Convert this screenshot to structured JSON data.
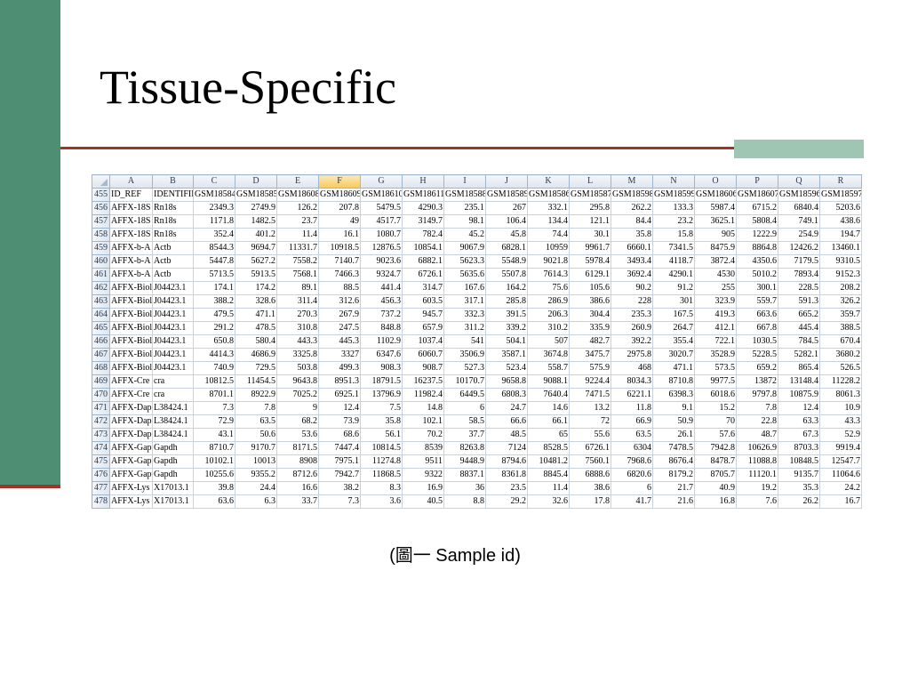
{
  "title": "Tissue-Specific",
  "caption": "(圖一 Sample id)",
  "colors": {
    "left_bar": "#4e8f73",
    "rule": "#a33227",
    "rule_accent": "#9fc6b3",
    "selected_column": "#f7c95e"
  },
  "sheet": {
    "selected_column": "F",
    "column_headers": [
      "A",
      "B",
      "C",
      "D",
      "E",
      "F",
      "G",
      "H",
      "I",
      "J",
      "K",
      "L",
      "M",
      "N",
      "O",
      "P",
      "Q",
      "R"
    ],
    "rows": [
      {
        "n": "455",
        "cells": [
          "ID_REF",
          "IDENTIFIE",
          "GSM18584",
          "GSM18585",
          "GSM18608",
          "GSM18609",
          "GSM18610",
          "GSM18611",
          "GSM18588",
          "GSM18589",
          "GSM18586",
          "GSM18587",
          "GSM18598",
          "GSM18599",
          "GSM18606",
          "GSM18607",
          "GSM18596",
          "GSM18597"
        ]
      },
      {
        "n": "456",
        "cells": [
          "AFFX-18S",
          "Rn18s",
          "2349.3",
          "2749.9",
          "126.2",
          "207.8",
          "5479.5",
          "4290.3",
          "235.1",
          "267",
          "332.1",
          "295.8",
          "262.2",
          "133.3",
          "5987.4",
          "6715.2",
          "6840.4",
          "5203.6"
        ]
      },
      {
        "n": "457",
        "cells": [
          "AFFX-18S",
          "Rn18s",
          "1171.8",
          "1482.5",
          "23.7",
          "49",
          "4517.7",
          "3149.7",
          "98.1",
          "106.4",
          "134.4",
          "121.1",
          "84.4",
          "23.2",
          "3625.1",
          "5808.4",
          "749.1",
          "438.6"
        ]
      },
      {
        "n": "458",
        "cells": [
          "AFFX-18S",
          "Rn18s",
          "352.4",
          "401.2",
          "11.4",
          "16.1",
          "1080.7",
          "782.4",
          "45.2",
          "45.8",
          "74.4",
          "30.1",
          "35.8",
          "15.8",
          "905",
          "1222.9",
          "254.9",
          "194.7"
        ]
      },
      {
        "n": "459",
        "cells": [
          "AFFX-b-A",
          "Actb",
          "8544.3",
          "9694.7",
          "11331.7",
          "10918.5",
          "12876.5",
          "10854.1",
          "9067.9",
          "6828.1",
          "10959",
          "9961.7",
          "6660.1",
          "7341.5",
          "8475.9",
          "8864.8",
          "12426.2",
          "13460.1"
        ]
      },
      {
        "n": "460",
        "cells": [
          "AFFX-b-A",
          "Actb",
          "5447.8",
          "5627.2",
          "7558.2",
          "7140.7",
          "9023.6",
          "6882.1",
          "5623.3",
          "5548.9",
          "9021.8",
          "5978.4",
          "3493.4",
          "4118.7",
          "3872.4",
          "4350.6",
          "7179.5",
          "9310.5"
        ]
      },
      {
        "n": "461",
        "cells": [
          "AFFX-b-A",
          "Actb",
          "5713.5",
          "5913.5",
          "7568.1",
          "7466.3",
          "9324.7",
          "6726.1",
          "5635.6",
          "5507.8",
          "7614.3",
          "6129.1",
          "3692.4",
          "4290.1",
          "4530",
          "5010.2",
          "7893.4",
          "9152.3"
        ]
      },
      {
        "n": "462",
        "cells": [
          "AFFX-Biol",
          "J04423.1",
          "174.1",
          "174.2",
          "89.1",
          "88.5",
          "441.4",
          "314.7",
          "167.6",
          "164.2",
          "75.6",
          "105.6",
          "90.2",
          "91.2",
          "255",
          "300.1",
          "228.5",
          "208.2"
        ]
      },
      {
        "n": "463",
        "cells": [
          "AFFX-Biol",
          "J04423.1",
          "388.2",
          "328.6",
          "311.4",
          "312.6",
          "456.3",
          "603.5",
          "317.1",
          "285.8",
          "286.9",
          "386.6",
          "228",
          "301",
          "323.9",
          "559.7",
          "591.3",
          "326.2"
        ]
      },
      {
        "n": "464",
        "cells": [
          "AFFX-Biol",
          "J04423.1",
          "479.5",
          "471.1",
          "270.3",
          "267.9",
          "737.2",
          "945.7",
          "332.3",
          "391.5",
          "206.3",
          "304.4",
          "235.3",
          "167.5",
          "419.3",
          "663.6",
          "665.2",
          "359.7"
        ]
      },
      {
        "n": "465",
        "cells": [
          "AFFX-Biol",
          "J04423.1",
          "291.2",
          "478.5",
          "310.8",
          "247.5",
          "848.8",
          "657.9",
          "311.2",
          "339.2",
          "310.2",
          "335.9",
          "260.9",
          "264.7",
          "412.1",
          "667.8",
          "445.4",
          "388.5"
        ]
      },
      {
        "n": "466",
        "cells": [
          "AFFX-Biol",
          "J04423.1",
          "650.8",
          "580.4",
          "443.3",
          "445.3",
          "1102.9",
          "1037.4",
          "541",
          "504.1",
          "507",
          "482.7",
          "392.2",
          "355.4",
          "722.1",
          "1030.5",
          "784.5",
          "670.4"
        ]
      },
      {
        "n": "467",
        "cells": [
          "AFFX-Biol",
          "J04423.1",
          "4414.3",
          "4686.9",
          "3325.8",
          "3327",
          "6347.6",
          "6060.7",
          "3506.9",
          "3587.1",
          "3674.8",
          "3475.7",
          "2975.8",
          "3020.7",
          "3528.9",
          "5228.5",
          "5282.1",
          "3680.2"
        ]
      },
      {
        "n": "468",
        "cells": [
          "AFFX-Biol",
          "J04423.1",
          "740.9",
          "729.5",
          "503.8",
          "499.3",
          "908.3",
          "908.7",
          "527.3",
          "523.4",
          "558.7",
          "575.9",
          "468",
          "471.1",
          "573.5",
          "659.2",
          "865.4",
          "526.5"
        ]
      },
      {
        "n": "469",
        "cells": [
          "AFFX-Cre",
          "cra",
          "10812.5",
          "11454.5",
          "9643.8",
          "8951.3",
          "18791.5",
          "16237.5",
          "10170.7",
          "9658.8",
          "9088.1",
          "9224.4",
          "8034.3",
          "8710.8",
          "9977.5",
          "13872",
          "13148.4",
          "11228.2"
        ]
      },
      {
        "n": "470",
        "cells": [
          "AFFX-Cre",
          "cra",
          "8701.1",
          "8922.9",
          "7025.2",
          "6925.1",
          "13796.9",
          "11982.4",
          "6449.5",
          "6808.3",
          "7640.4",
          "7471.5",
          "6221.1",
          "6398.3",
          "6018.6",
          "9797.8",
          "10875.9",
          "8061.3"
        ]
      },
      {
        "n": "471",
        "cells": [
          "AFFX-Dap",
          "L38424.1",
          "7.3",
          "7.8",
          "9",
          "12.4",
          "7.5",
          "14.8",
          "6",
          "24.7",
          "14.6",
          "13.2",
          "11.8",
          "9.1",
          "15.2",
          "7.8",
          "12.4",
          "10.9"
        ]
      },
      {
        "n": "472",
        "cells": [
          "AFFX-Dap",
          "L38424.1",
          "72.9",
          "63.5",
          "68.2",
          "73.9",
          "35.8",
          "102.1",
          "58.5",
          "66.6",
          "66.1",
          "72",
          "66.9",
          "50.9",
          "70",
          "22.8",
          "63.3",
          "43.3"
        ]
      },
      {
        "n": "473",
        "cells": [
          "AFFX-Dap",
          "L38424.1",
          "43.1",
          "50.6",
          "53.6",
          "68.6",
          "56.1",
          "70.2",
          "37.7",
          "48.5",
          "65",
          "55.6",
          "63.5",
          "26.1",
          "57.6",
          "48.7",
          "67.3",
          "52.9"
        ]
      },
      {
        "n": "474",
        "cells": [
          "AFFX-Gap",
          "Gapdh",
          "8710.7",
          "9170.7",
          "8171.5",
          "7447.4",
          "10814.5",
          "8539",
          "8263.8",
          "7124",
          "8528.5",
          "6726.1",
          "6304",
          "7478.5",
          "7942.8",
          "10626.9",
          "8703.3",
          "9919.4"
        ]
      },
      {
        "n": "475",
        "cells": [
          "AFFX-Gap",
          "Gapdh",
          "10102.1",
          "10013",
          "8908",
          "7975.1",
          "11274.8",
          "9511",
          "9448.9",
          "8794.6",
          "10481.2",
          "7560.1",
          "7968.6",
          "8676.4",
          "8478.7",
          "11088.8",
          "10848.5",
          "12547.7"
        ]
      },
      {
        "n": "476",
        "cells": [
          "AFFX-Gap",
          "Gapdh",
          "10255.6",
          "9355.2",
          "8712.6",
          "7942.7",
          "11868.5",
          "9322",
          "8837.1",
          "8361.8",
          "8845.4",
          "6888.6",
          "6820.6",
          "8179.2",
          "8705.7",
          "11120.1",
          "9135.7",
          "11064.6"
        ]
      },
      {
        "n": "477",
        "cells": [
          "AFFX-Lys",
          "X17013.1",
          "39.8",
          "24.4",
          "16.6",
          "38.2",
          "8.3",
          "16.9",
          "36",
          "23.5",
          "11.4",
          "38.6",
          "6",
          "21.7",
          "40.9",
          "19.2",
          "35.3",
          "24.2"
        ]
      },
      {
        "n": "478",
        "cells": [
          "AFFX-Lys",
          "X17013.1",
          "63.6",
          "6.3",
          "33.7",
          "7.3",
          "3.6",
          "40.5",
          "8.8",
          "29.2",
          "32.6",
          "17.8",
          "41.7",
          "21.6",
          "16.8",
          "7.6",
          "26.2",
          "16.7"
        ]
      }
    ]
  }
}
